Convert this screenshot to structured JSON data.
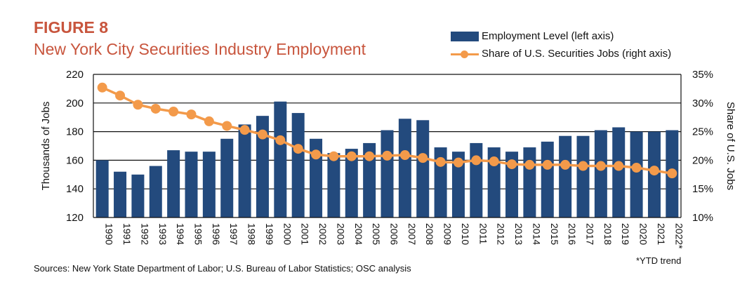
{
  "figure_label": "FIGURE 8",
  "title": "New York City Securities Industry Employment",
  "source": "Sources: New York State Department of Labor; U.S. Bureau of Labor Statistics; OSC analysis",
  "footnote": "*YTD trend",
  "colors": {
    "bar": "#234a7d",
    "line": "#f39a4a",
    "title": "#c8553d"
  },
  "chart_data": {
    "type": "bar",
    "categories": [
      "1990",
      "1991",
      "1992",
      "1993",
      "1994",
      "1995",
      "1996",
      "1997",
      "1998",
      "1999",
      "2000",
      "2001",
      "2002",
      "2003",
      "2004",
      "2005",
      "2006",
      "2007",
      "2008",
      "2009",
      "2010",
      "2011",
      "2012",
      "2013",
      "2014",
      "2015",
      "2016",
      "2017",
      "2018",
      "2019",
      "2020",
      "2021",
      "2022*"
    ],
    "series": [
      {
        "name": "Employment Level (left axis)",
        "type": "bar",
        "axis": "left",
        "values": [
          160,
          152,
          150,
          156,
          167,
          166,
          166,
          175,
          185,
          191,
          201,
          193,
          175,
          165,
          168,
          172,
          181,
          189,
          188,
          169,
          166,
          172,
          169,
          166,
          169,
          173,
          177,
          177,
          181,
          183,
          180,
          180,
          181
        ]
      },
      {
        "name": "Share of U.S. Securities Jobs (right axis)",
        "type": "line",
        "axis": "right",
        "values": [
          32.7,
          31.3,
          29.7,
          29.0,
          28.5,
          28.0,
          26.8,
          26.0,
          25.3,
          24.5,
          23.5,
          22.0,
          21.0,
          20.7,
          20.7,
          20.7,
          20.8,
          20.9,
          20.4,
          19.7,
          19.6,
          20.0,
          19.8,
          19.3,
          19.2,
          19.2,
          19.2,
          19.0,
          19.0,
          19.0,
          18.7,
          18.2,
          17.7
        ]
      }
    ],
    "ylabel": "Thousands of Jobs",
    "y2label": "Share of U.S. Jobs",
    "ylim": [
      120,
      220
    ],
    "y2lim": [
      10,
      35
    ],
    "yticks": [
      "220",
      "200",
      "180",
      "160",
      "140",
      "120"
    ],
    "y2ticks": [
      "35%",
      "30%",
      "25%",
      "20%",
      "15%",
      "10%"
    ],
    "grid": true,
    "legend_position": "top-right"
  }
}
